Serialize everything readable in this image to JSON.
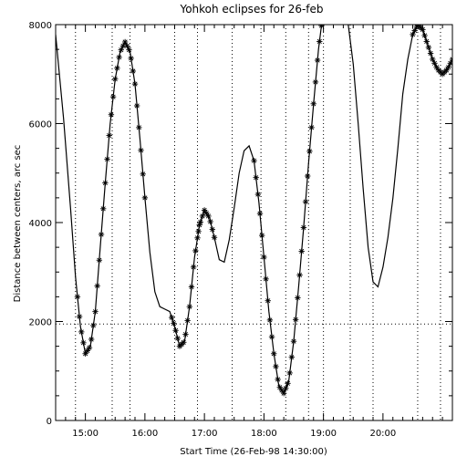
{
  "chart_data": {
    "type": "line",
    "title": "Yohkoh eclipses for 26-feb",
    "xlabel": "Start Time (26-Feb-98 14:30:00)",
    "ylabel": "Distance between centers, arc sec",
    "x_units": "minutes since 14:30 (26-Feb-98)",
    "xlim": [
      0,
      400
    ],
    "ylim": [
      0,
      8000
    ],
    "x_ticks": [
      {
        "value": 30,
        "label": "15:00"
      },
      {
        "value": 90,
        "label": "16:00"
      },
      {
        "value": 150,
        "label": "17:00"
      },
      {
        "value": 210,
        "label": "18:00"
      },
      {
        "value": 270,
        "label": "19:00"
      },
      {
        "value": 330,
        "label": "20:00"
      }
    ],
    "y_ticks": [
      {
        "value": 0,
        "label": "0"
      },
      {
        "value": 2000,
        "label": "2000"
      },
      {
        "value": 4000,
        "label": "4000"
      },
      {
        "value": 6000,
        "label": "6000"
      },
      {
        "value": 8000,
        "label": "8000"
      }
    ],
    "dotted_vertical_lines": [
      20,
      57,
      75,
      120,
      143,
      178,
      207,
      232,
      255,
      270,
      297,
      320,
      365,
      388
    ],
    "dotted_horizontal_line": 1950,
    "series": [
      {
        "style": "line",
        "x": [
          0,
          8,
          15,
          20,
          25,
          30,
          35,
          40,
          45,
          50,
          55,
          60,
          65,
          70,
          75,
          80,
          85,
          90,
          95,
          100,
          105,
          110,
          115,
          120,
          125,
          130,
          135,
          140,
          145,
          150,
          155,
          160,
          165,
          170,
          175,
          180,
          185,
          190,
          195,
          200,
          205,
          210,
          215,
          220,
          225,
          230,
          235,
          240,
          245,
          250,
          255,
          260,
          265,
          270,
          275,
          280,
          285,
          290,
          295,
          300,
          305,
          310,
          315,
          320,
          325,
          330,
          335,
          340,
          345,
          350,
          355,
          360,
          365,
          370,
          375,
          380,
          385,
          390,
          395,
          400
        ],
        "y": [
          7800,
          6100,
          4300,
          2900,
          1900,
          1350,
          1500,
          2200,
          3500,
          4800,
          6000,
          6900,
          7450,
          7650,
          7450,
          6800,
          5700,
          4500,
          3400,
          2600,
          2300,
          2250,
          2200,
          1900,
          1500,
          1600,
          2300,
          3300,
          3950,
          4250,
          4100,
          3700,
          3250,
          3200,
          3650,
          4300,
          5000,
          5450,
          5550,
          5250,
          4400,
          3300,
          2200,
          1350,
          700,
          550,
          800,
          1600,
          2700,
          3900,
          5200,
          6400,
          7500,
          8300,
          8700,
          8800,
          8700,
          8400,
          8000,
          7200,
          6000,
          4700,
          3500,
          2800,
          2700,
          3100,
          3700,
          4500,
          5500,
          6600,
          7300,
          7800,
          8000,
          7900,
          7600,
          7300,
          7100,
          7000,
          7100,
          7300
        ]
      },
      {
        "style": "markers",
        "marker": "asterisk",
        "segments": [
          {
            "x_start": 22,
            "x_end": 90,
            "step": 2
          },
          {
            "x_start": 117,
            "x_end": 145,
            "step": 2
          },
          {
            "x_start": 144,
            "x_end": 160,
            "step": 2
          },
          {
            "x_start": 200,
            "x_end": 288,
            "step": 2
          },
          {
            "x_start": 360,
            "x_end": 400,
            "step": 2
          }
        ]
      }
    ]
  }
}
